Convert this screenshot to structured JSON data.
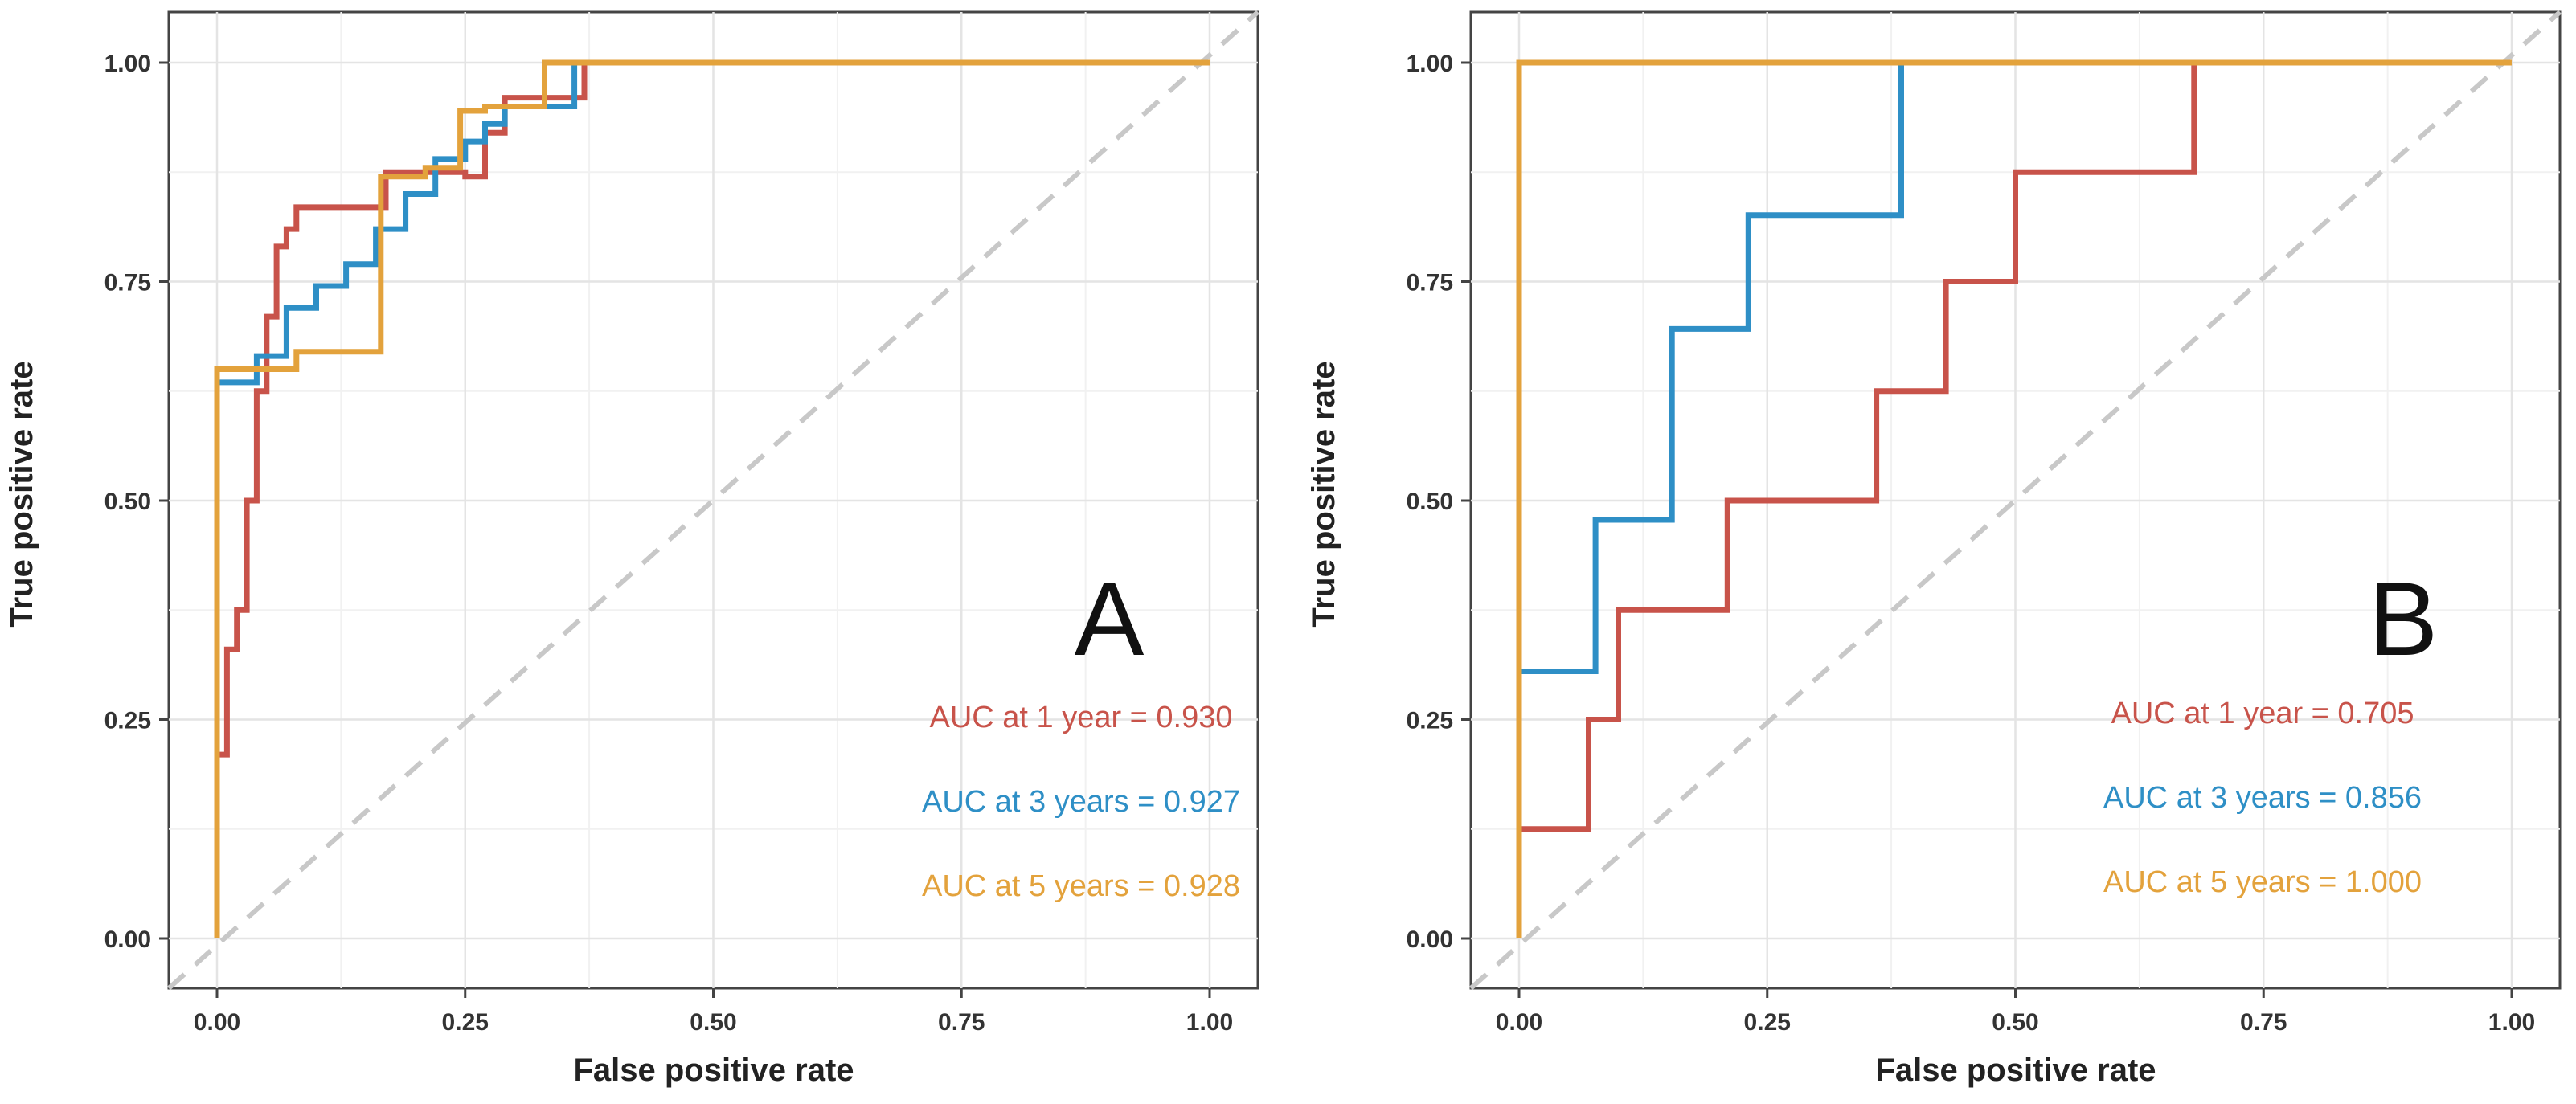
{
  "chart_data": [
    {
      "type": "line",
      "panel_label": "A",
      "xlabel": "False positive rate",
      "ylabel": "True positive rate",
      "xlim": [
        -0.05,
        1.05
      ],
      "ylim": [
        -0.05,
        1.05
      ],
      "x_ticks": [
        "0.00",
        "0.25",
        "0.50",
        "0.75",
        "1.00"
      ],
      "y_ticks": [
        "0.00",
        "0.25",
        "0.50",
        "0.75",
        "1.00"
      ],
      "grid": true,
      "reference_line": {
        "style": "dashed",
        "color": "#c8c8c8",
        "from": [
          0,
          0
        ],
        "to": [
          1,
          1
        ]
      },
      "series": [
        {
          "name": "1 year",
          "color": "#c8534a",
          "x": [
            0,
            0,
            0.01,
            0.01,
            0.02,
            0.02,
            0.03,
            0.03,
            0.04,
            0.04,
            0.05,
            0.05,
            0.06,
            0.06,
            0.07,
            0.07,
            0.08,
            0.08,
            0.17,
            0.17,
            0.25,
            0.25,
            0.27,
            0.27,
            0.29,
            0.29,
            0.34,
            0.34,
            0.37,
            0.37,
            1.0
          ],
          "y": [
            0,
            0.21,
            0.21,
            0.33,
            0.33,
            0.375,
            0.375,
            0.5,
            0.5,
            0.625,
            0.625,
            0.71,
            0.71,
            0.79,
            0.79,
            0.81,
            0.81,
            0.835,
            0.835,
            0.875,
            0.875,
            0.87,
            0.87,
            0.92,
            0.92,
            0.96,
            0.96,
            0.96,
            0.96,
            1.0,
            1.0
          ]
        },
        {
          "name": "3 years",
          "color": "#2e8fc6",
          "x": [
            0,
            0,
            0.04,
            0.04,
            0.07,
            0.07,
            0.1,
            0.1,
            0.13,
            0.13,
            0.16,
            0.16,
            0.19,
            0.19,
            0.22,
            0.22,
            0.25,
            0.25,
            0.27,
            0.27,
            0.29,
            0.29,
            0.31,
            0.31,
            0.36,
            0.36,
            0.37,
            0.37,
            1.0
          ],
          "y": [
            0,
            0.635,
            0.635,
            0.665,
            0.665,
            0.72,
            0.72,
            0.745,
            0.745,
            0.77,
            0.77,
            0.81,
            0.81,
            0.85,
            0.85,
            0.89,
            0.89,
            0.91,
            0.91,
            0.93,
            0.93,
            0.95,
            0.95,
            0.95,
            0.95,
            1.0,
            1.0,
            1.0,
            1.0
          ]
        },
        {
          "name": "5 years",
          "color": "#e3a23c",
          "x": [
            0,
            0,
            0.08,
            0.08,
            0.165,
            0.165,
            0.21,
            0.21,
            0.245,
            0.245,
            0.27,
            0.27,
            0.33,
            0.33,
            1.0
          ],
          "y": [
            0,
            0.65,
            0.65,
            0.67,
            0.67,
            0.87,
            0.87,
            0.88,
            0.88,
            0.945,
            0.945,
            0.95,
            0.95,
            1.0,
            1.0
          ]
        }
      ],
      "annotations": [
        {
          "text": "AUC at 1 year = 0.930",
          "color": "#c8534a"
        },
        {
          "text": "AUC at 3 years = 0.927",
          "color": "#2e8fc6"
        },
        {
          "text": "AUC at 5 years = 0.928",
          "color": "#e3a23c"
        }
      ]
    },
    {
      "type": "line",
      "panel_label": "B",
      "xlabel": "False positive rate",
      "ylabel": "True positive rate",
      "xlim": [
        -0.05,
        1.05
      ],
      "ylim": [
        -0.05,
        1.05
      ],
      "x_ticks": [
        "0.00",
        "0.25",
        "0.50",
        "0.75",
        "1.00"
      ],
      "y_ticks": [
        "0.00",
        "0.25",
        "0.50",
        "0.75",
        "1.00"
      ],
      "grid": true,
      "reference_line": {
        "style": "dashed",
        "color": "#c8c8c8",
        "from": [
          0,
          0
        ],
        "to": [
          1,
          1
        ]
      },
      "series": [
        {
          "name": "1 year",
          "color": "#c8534a",
          "x": [
            0,
            0,
            0.07,
            0.07,
            0.1,
            0.1,
            0.21,
            0.21,
            0.36,
            0.36,
            0.43,
            0.43,
            0.5,
            0.5,
            0.68,
            0.68,
            1.0
          ],
          "y": [
            0,
            0.125,
            0.125,
            0.25,
            0.25,
            0.375,
            0.375,
            0.5,
            0.5,
            0.625,
            0.625,
            0.75,
            0.75,
            0.875,
            0.875,
            1.0,
            1.0
          ]
        },
        {
          "name": "3 years",
          "color": "#2e8fc6",
          "x": [
            0,
            0,
            0.077,
            0.077,
            0.154,
            0.154,
            0.231,
            0.231,
            0.385,
            0.385,
            1.0
          ],
          "y": [
            0,
            0.305,
            0.305,
            0.478,
            0.478,
            0.696,
            0.696,
            0.826,
            0.826,
            1.0,
            1.0
          ]
        },
        {
          "name": "5 years",
          "color": "#e3a23c",
          "x": [
            0,
            0,
            1.0
          ],
          "y": [
            0,
            1.0,
            1.0
          ]
        }
      ],
      "annotations": [
        {
          "text": "AUC at 1 year = 0.705",
          "color": "#c8534a"
        },
        {
          "text": "AUC at 3 years = 0.856",
          "color": "#2e8fc6"
        },
        {
          "text": "AUC at 5 years = 1.000",
          "color": "#e3a23c"
        }
      ]
    }
  ]
}
